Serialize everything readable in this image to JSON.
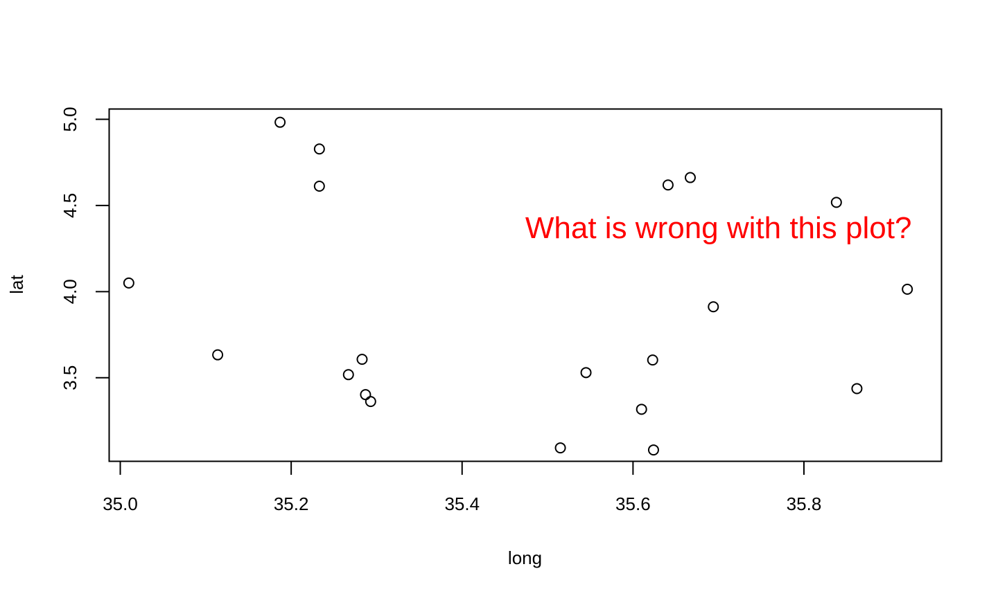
{
  "chart_data": {
    "type": "scatter",
    "xlabel": "long",
    "ylabel": "lat",
    "xlim": [
      34.987,
      35.961
    ],
    "ylim": [
      3.015,
      5.06
    ],
    "x_ticks": [
      35.0,
      35.2,
      35.4,
      35.6,
      35.8
    ],
    "x_tick_labels": [
      "35.0",
      "35.2",
      "35.4",
      "35.6",
      "35.8"
    ],
    "y_ticks": [
      3.5,
      4.0,
      4.5,
      5.0
    ],
    "y_tick_labels": [
      "3.5",
      "4.0",
      "4.5",
      "5.0"
    ],
    "grid": false,
    "marker": "open-circle",
    "point_color": "#000000",
    "annotation": {
      "text": "What is wrong with this plot?",
      "color": "#ff0000",
      "x": 35.7,
      "y": 4.31
    },
    "points": [
      {
        "x": 35.01,
        "y": 4.05
      },
      {
        "x": 35.114,
        "y": 3.633
      },
      {
        "x": 35.187,
        "y": 4.983
      },
      {
        "x": 35.233,
        "y": 4.828
      },
      {
        "x": 35.233,
        "y": 4.612
      },
      {
        "x": 35.267,
        "y": 3.518
      },
      {
        "x": 35.283,
        "y": 3.607
      },
      {
        "x": 35.287,
        "y": 3.402
      },
      {
        "x": 35.293,
        "y": 3.362
      },
      {
        "x": 35.515,
        "y": 3.093
      },
      {
        "x": 35.545,
        "y": 3.53
      },
      {
        "x": 35.61,
        "y": 3.317
      },
      {
        "x": 35.623,
        "y": 3.603
      },
      {
        "x": 35.624,
        "y": 3.081
      },
      {
        "x": 35.641,
        "y": 4.619
      },
      {
        "x": 35.667,
        "y": 4.662
      },
      {
        "x": 35.694,
        "y": 3.912
      },
      {
        "x": 35.838,
        "y": 4.518
      },
      {
        "x": 35.862,
        "y": 3.437
      },
      {
        "x": 35.921,
        "y": 4.014
      }
    ]
  }
}
